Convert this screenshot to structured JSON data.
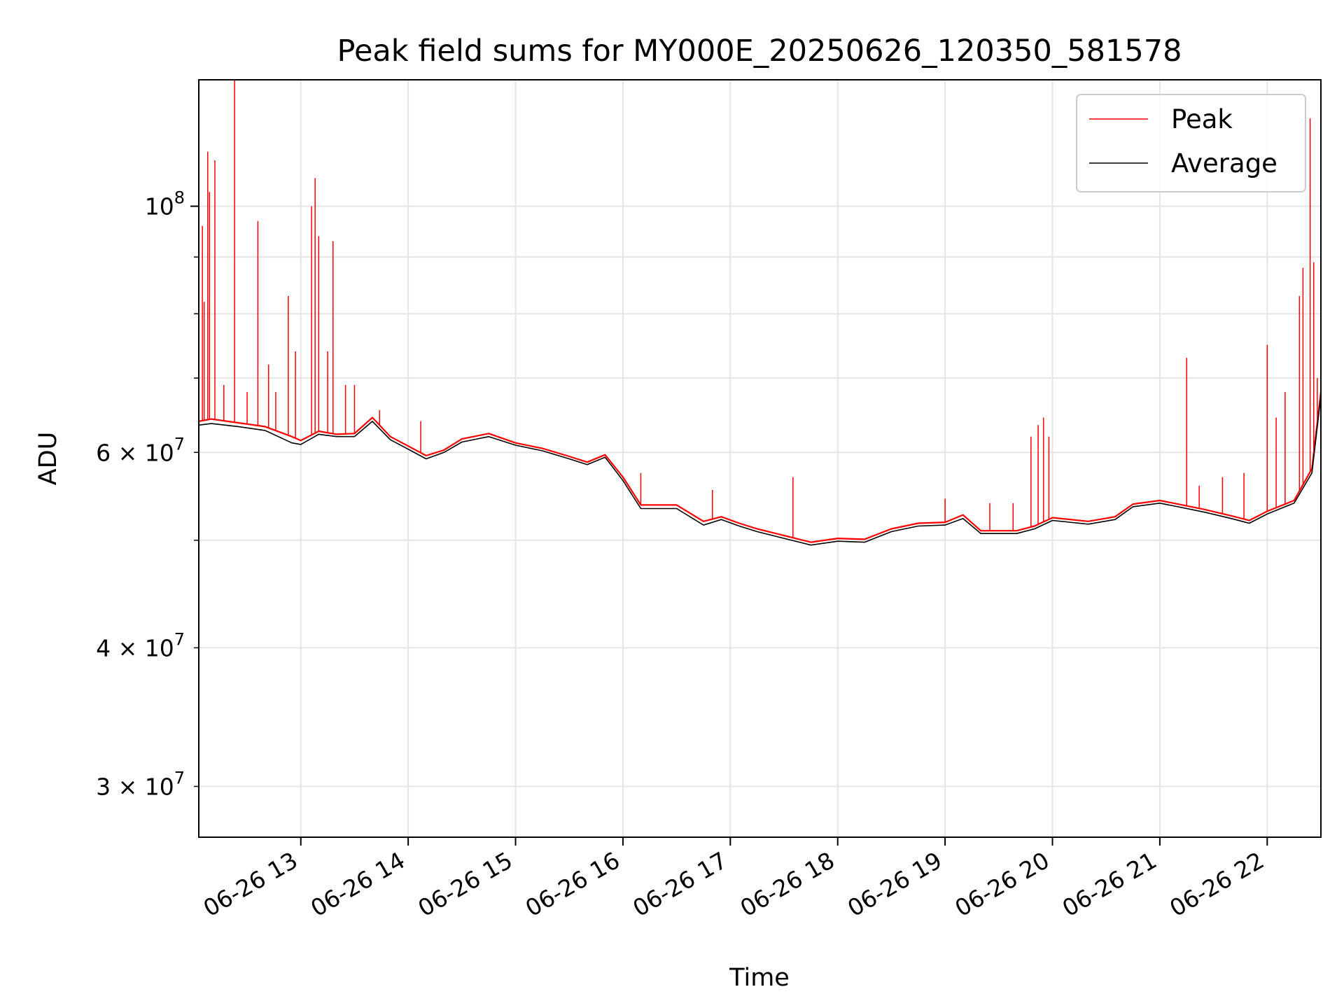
{
  "chart_data": {
    "type": "line",
    "title": "Peak field sums for MY000E_20250626_120350_581578",
    "xlabel": "Time",
    "ylabel": "ADU",
    "yscale": "log",
    "xlim": [
      "2025-06-26 12:03",
      "2025-06-26 22:30"
    ],
    "ylim": [
      27000000,
      130000000
    ],
    "grid": true,
    "legend_position": "top-right",
    "x_ticks": [
      {
        "value": "2025-06-26 13:00",
        "label": "06-26 13"
      },
      {
        "value": "2025-06-26 14:00",
        "label": "06-26 14"
      },
      {
        "value": "2025-06-26 15:00",
        "label": "06-26 15"
      },
      {
        "value": "2025-06-26 16:00",
        "label": "06-26 16"
      },
      {
        "value": "2025-06-26 17:00",
        "label": "06-26 17"
      },
      {
        "value": "2025-06-26 18:00",
        "label": "06-26 18"
      },
      {
        "value": "2025-06-26 19:00",
        "label": "06-26 19"
      },
      {
        "value": "2025-06-26 20:00",
        "label": "06-26 20"
      },
      {
        "value": "2025-06-26 21:00",
        "label": "06-26 21"
      },
      {
        "value": "2025-06-26 22:00",
        "label": "06-26 22"
      }
    ],
    "y_ticks_major": [
      {
        "value": 100000000,
        "base": "10",
        "exp": "8"
      }
    ],
    "y_ticks_minor": [
      {
        "value": 30000000,
        "mantissa": "3 × 10",
        "exp": "7"
      },
      {
        "value": 40000000,
        "mantissa": "4 × 10",
        "exp": "7"
      },
      {
        "value": 60000000,
        "mantissa": "6 × 10",
        "exp": "7"
      }
    ],
    "y_minor_unlabeled": [
      50000000,
      70000000,
      80000000,
      90000000
    ],
    "series": [
      {
        "name": "Peak",
        "color": "#ff0000",
        "baseline": [
          [
            "2025-06-26 12:03",
            64000000
          ],
          [
            "2025-06-26 12:10",
            64300000
          ],
          [
            "2025-06-26 12:25",
            63800000
          ],
          [
            "2025-06-26 12:40",
            63300000
          ],
          [
            "2025-06-26 12:55",
            62000000
          ],
          [
            "2025-06-26 13:00",
            61500000
          ],
          [
            "2025-06-26 13:10",
            62700000
          ],
          [
            "2025-06-26 13:20",
            62300000
          ],
          [
            "2025-06-26 13:30",
            62400000
          ],
          [
            "2025-06-26 13:40",
            64500000
          ],
          [
            "2025-06-26 13:50",
            62000000
          ],
          [
            "2025-06-26 14:00",
            60800000
          ],
          [
            "2025-06-26 14:10",
            59600000
          ],
          [
            "2025-06-26 14:20",
            60300000
          ],
          [
            "2025-06-26 14:30",
            61700000
          ],
          [
            "2025-06-26 14:45",
            62400000
          ],
          [
            "2025-06-26 15:00",
            61200000
          ],
          [
            "2025-06-26 15:15",
            60500000
          ],
          [
            "2025-06-26 15:30",
            59500000
          ],
          [
            "2025-06-26 15:40",
            58800000
          ],
          [
            "2025-06-26 15:50",
            59700000
          ],
          [
            "2025-06-26 16:00",
            57000000
          ],
          [
            "2025-06-26 16:10",
            53800000
          ],
          [
            "2025-06-26 16:30",
            53800000
          ],
          [
            "2025-06-26 16:45",
            52000000
          ],
          [
            "2025-06-26 16:55",
            52500000
          ],
          [
            "2025-06-26 17:05",
            51800000
          ],
          [
            "2025-06-26 17:15",
            51200000
          ],
          [
            "2025-06-26 17:30",
            50500000
          ],
          [
            "2025-06-26 17:45",
            49800000
          ],
          [
            "2025-06-26 18:00",
            50200000
          ],
          [
            "2025-06-26 18:15",
            50100000
          ],
          [
            "2025-06-26 18:30",
            51200000
          ],
          [
            "2025-06-26 18:45",
            51800000
          ],
          [
            "2025-06-26 19:00",
            51900000
          ],
          [
            "2025-06-26 19:10",
            52700000
          ],
          [
            "2025-06-26 19:20",
            51000000
          ],
          [
            "2025-06-26 19:40",
            51000000
          ],
          [
            "2025-06-26 19:50",
            51500000
          ],
          [
            "2025-06-26 20:00",
            52400000
          ],
          [
            "2025-06-26 20:20",
            52000000
          ],
          [
            "2025-06-26 20:35",
            52500000
          ],
          [
            "2025-06-26 20:45",
            53900000
          ],
          [
            "2025-06-26 21:00",
            54300000
          ],
          [
            "2025-06-26 21:10",
            53900000
          ],
          [
            "2025-06-26 21:25",
            53300000
          ],
          [
            "2025-06-26 21:40",
            52600000
          ],
          [
            "2025-06-26 21:50",
            52100000
          ],
          [
            "2025-06-26 22:00",
            53100000
          ],
          [
            "2025-06-26 22:15",
            54300000
          ],
          [
            "2025-06-26 22:25",
            58000000
          ],
          [
            "2025-06-26 22:30",
            68000000
          ]
        ],
        "spikes": [
          [
            "2025-06-26 12:05",
            96000000
          ],
          [
            "2025-06-26 12:06",
            82000000
          ],
          [
            "2025-06-26 12:08",
            112000000
          ],
          [
            "2025-06-26 12:09",
            103000000
          ],
          [
            "2025-06-26 12:12",
            110000000
          ],
          [
            "2025-06-26 12:17",
            69000000
          ],
          [
            "2025-06-26 12:23",
            130000000
          ],
          [
            "2025-06-26 12:30",
            68000000
          ],
          [
            "2025-06-26 12:36",
            97000000
          ],
          [
            "2025-06-26 12:42",
            72000000
          ],
          [
            "2025-06-26 12:46",
            68000000
          ],
          [
            "2025-06-26 12:53",
            83000000
          ],
          [
            "2025-06-26 12:57",
            74000000
          ],
          [
            "2025-06-26 13:06",
            100000000
          ],
          [
            "2025-06-26 13:08",
            106000000
          ],
          [
            "2025-06-26 13:10",
            94000000
          ],
          [
            "2025-06-26 13:15",
            74000000
          ],
          [
            "2025-06-26 13:18",
            93000000
          ],
          [
            "2025-06-26 13:25",
            69000000
          ],
          [
            "2025-06-26 13:30",
            69000000
          ],
          [
            "2025-06-26 13:44",
            65500000
          ],
          [
            "2025-06-26 14:07",
            64000000
          ],
          [
            "2025-06-26 16:10",
            57500000
          ],
          [
            "2025-06-26 16:50",
            55500000
          ],
          [
            "2025-06-26 17:35",
            57000000
          ],
          [
            "2025-06-26 19:00",
            54500000
          ],
          [
            "2025-06-26 19:25",
            54000000
          ],
          [
            "2025-06-26 19:38",
            54000000
          ],
          [
            "2025-06-26 19:48",
            62000000
          ],
          [
            "2025-06-26 19:52",
            63500000
          ],
          [
            "2025-06-26 19:55",
            64500000
          ],
          [
            "2025-06-26 19:58",
            62000000
          ],
          [
            "2025-06-26 21:15",
            73000000
          ],
          [
            "2025-06-26 21:22",
            56000000
          ],
          [
            "2025-06-26 21:35",
            57000000
          ],
          [
            "2025-06-26 21:47",
            57500000
          ],
          [
            "2025-06-26 22:00",
            75000000
          ],
          [
            "2025-06-26 22:05",
            64500000
          ],
          [
            "2025-06-26 22:10",
            68000000
          ],
          [
            "2025-06-26 22:18",
            83000000
          ],
          [
            "2025-06-26 22:20",
            88000000
          ],
          [
            "2025-06-26 22:24",
            120000000
          ],
          [
            "2025-06-26 22:26",
            89000000
          ],
          [
            "2025-06-26 22:28",
            70000000
          ]
        ]
      },
      {
        "name": "Average",
        "color": "#000000",
        "baseline": [
          [
            "2025-06-26 12:03",
            63500000
          ],
          [
            "2025-06-26 12:10",
            63700000
          ],
          [
            "2025-06-26 12:25",
            63300000
          ],
          [
            "2025-06-26 12:40",
            62800000
          ],
          [
            "2025-06-26 12:55",
            61200000
          ],
          [
            "2025-06-26 13:00",
            61000000
          ],
          [
            "2025-06-26 13:10",
            62300000
          ],
          [
            "2025-06-26 13:20",
            62000000
          ],
          [
            "2025-06-26 13:30",
            62000000
          ],
          [
            "2025-06-26 13:40",
            64000000
          ],
          [
            "2025-06-26 13:50",
            61600000
          ],
          [
            "2025-06-26 14:00",
            60400000
          ],
          [
            "2025-06-26 14:10",
            59200000
          ],
          [
            "2025-06-26 14:20",
            60000000
          ],
          [
            "2025-06-26 14:30",
            61300000
          ],
          [
            "2025-06-26 14:45",
            62000000
          ],
          [
            "2025-06-26 15:00",
            60900000
          ],
          [
            "2025-06-26 15:15",
            60200000
          ],
          [
            "2025-06-26 15:30",
            59200000
          ],
          [
            "2025-06-26 15:40",
            58500000
          ],
          [
            "2025-06-26 15:50",
            59400000
          ],
          [
            "2025-06-26 16:00",
            56600000
          ],
          [
            "2025-06-26 16:10",
            53400000
          ],
          [
            "2025-06-26 16:30",
            53400000
          ],
          [
            "2025-06-26 16:45",
            51600000
          ],
          [
            "2025-06-26 16:55",
            52200000
          ],
          [
            "2025-06-26 17:05",
            51500000
          ],
          [
            "2025-06-26 17:15",
            50900000
          ],
          [
            "2025-06-26 17:30",
            50200000
          ],
          [
            "2025-06-26 17:45",
            49500000
          ],
          [
            "2025-06-26 18:00",
            49900000
          ],
          [
            "2025-06-26 18:15",
            49800000
          ],
          [
            "2025-06-26 18:30",
            50900000
          ],
          [
            "2025-06-26 18:45",
            51500000
          ],
          [
            "2025-06-26 19:00",
            51600000
          ],
          [
            "2025-06-26 19:10",
            52300000
          ],
          [
            "2025-06-26 19:20",
            50700000
          ],
          [
            "2025-06-26 19:40",
            50700000
          ],
          [
            "2025-06-26 19:50",
            51200000
          ],
          [
            "2025-06-26 20:00",
            52100000
          ],
          [
            "2025-06-26 20:20",
            51700000
          ],
          [
            "2025-06-26 20:35",
            52200000
          ],
          [
            "2025-06-26 20:45",
            53600000
          ],
          [
            "2025-06-26 21:00",
            54000000
          ],
          [
            "2025-06-26 21:10",
            53600000
          ],
          [
            "2025-06-26 21:25",
            53000000
          ],
          [
            "2025-06-26 21:40",
            52300000
          ],
          [
            "2025-06-26 21:50",
            51800000
          ],
          [
            "2025-06-26 22:00",
            52800000
          ],
          [
            "2025-06-26 22:15",
            54000000
          ],
          [
            "2025-06-26 22:25",
            57500000
          ],
          [
            "2025-06-26 22:30",
            67500000
          ]
        ],
        "spikes": []
      }
    ]
  }
}
